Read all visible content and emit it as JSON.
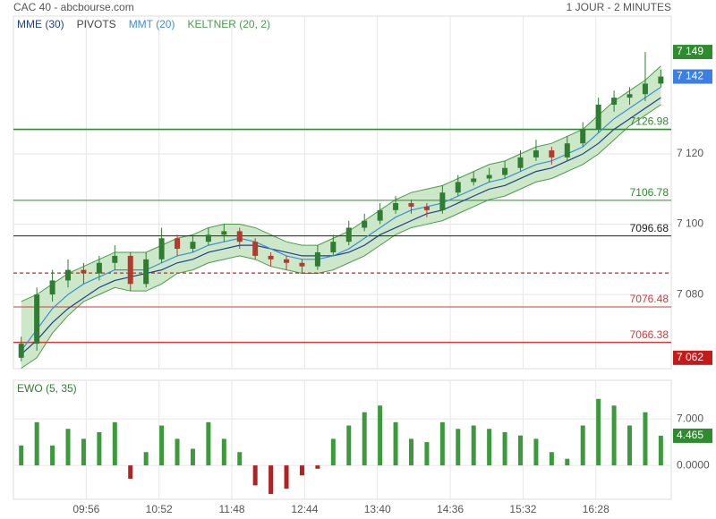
{
  "header": {
    "source": "CAC 40 - abcbourse.com",
    "period": "1 JOUR - 2 MINUTES"
  },
  "chart_data": [
    {
      "type": "candlestick",
      "xlim": [
        540,
        1046
      ],
      "ylim": [
        7058.9,
        7159.2
      ],
      "yticks": [
        {
          "value": 7080,
          "label": "7 080"
        },
        {
          "value": 7100,
          "label": "7 100"
        },
        {
          "value": 7120,
          "label": "7 120"
        }
      ],
      "grid": true,
      "x": [
        546,
        558,
        570,
        582,
        594,
        606,
        618,
        630,
        642,
        654,
        666,
        678,
        690,
        702,
        714,
        726,
        738,
        750,
        762,
        774,
        786,
        798,
        810,
        822,
        834,
        846,
        858,
        870,
        882,
        894,
        906,
        918,
        930,
        942,
        954,
        966,
        978,
        990,
        1002,
        1014,
        1026,
        1038
      ],
      "open": [
        7062,
        7066,
        7080,
        7084,
        7087,
        7086,
        7089,
        7091,
        7083,
        7090,
        7096,
        7093,
        7095,
        7097,
        7098,
        7095,
        7091,
        7090,
        7089,
        7088,
        7092,
        7095,
        7099,
        7101,
        7104,
        7106,
        7105,
        7104,
        7109,
        7112,
        7113,
        7114,
        7116,
        7119,
        7121,
        7119,
        7123,
        7127,
        7134,
        7136,
        7137,
        7140
      ],
      "high": [
        7068,
        7082,
        7087,
        7090,
        7089,
        7091,
        7094,
        7092,
        7092,
        7099,
        7097,
        7097,
        7099,
        7100,
        7099,
        7096,
        7092,
        7091,
        7090,
        7094,
        7097,
        7101,
        7103,
        7106,
        7108,
        7107,
        7106,
        7111,
        7114,
        7115,
        7116,
        7118,
        7121,
        7124,
        7122,
        7125,
        7129,
        7136,
        7138,
        7139,
        7149,
        7144
      ],
      "low": [
        7061,
        7064,
        7078,
        7082,
        7083,
        7084,
        7087,
        7081,
        7082,
        7089,
        7091,
        7092,
        7094,
        7095,
        7093,
        7090,
        7088,
        7087,
        7086,
        7087,
        7091,
        7094,
        7098,
        7100,
        7103,
        7103,
        7102,
        7103,
        7108,
        7111,
        7112,
        7113,
        7115,
        7118,
        7117,
        7118,
        7122,
        7126,
        7132,
        7134,
        7135,
        7139
      ],
      "close": [
        7066,
        7080,
        7084,
        7087,
        7086,
        7089,
        7091,
        7083,
        7090,
        7096,
        7093,
        7095,
        7097,
        7098,
        7095,
        7091,
        7090,
        7089,
        7088,
        7092,
        7095,
        7099,
        7101,
        7104,
        7106,
        7105,
        7104,
        7109,
        7112,
        7113,
        7114,
        7116,
        7119,
        7121,
        7119,
        7123,
        7127,
        7134,
        7136,
        7137,
        7140,
        7142
      ],
      "up_color": "#2e7d32",
      "down_color": "#b23b2e",
      "series": [
        {
          "name": "MME (30)",
          "color": "#1f3f8f",
          "values": [
            7063,
            7067,
            7072,
            7076,
            7079,
            7082,
            7084,
            7085,
            7086,
            7087,
            7089,
            7090,
            7092,
            7093,
            7094,
            7094,
            7093,
            7092,
            7091,
            7091,
            7091,
            7092,
            7094,
            7097,
            7099,
            7101,
            7103,
            7104,
            7106,
            7108,
            7110,
            7111,
            7113,
            7115,
            7116,
            7118,
            7120,
            7123,
            7127,
            7130,
            7133,
            7136
          ]
        },
        {
          "name": "MMT (20)",
          "color": "#3b8fd9",
          "values": [
            7064,
            7070,
            7076,
            7080,
            7083,
            7085,
            7087,
            7087,
            7087,
            7089,
            7091,
            7092,
            7094,
            7095,
            7096,
            7095,
            7093,
            7091,
            7090,
            7090,
            7091,
            7093,
            7096,
            7099,
            7102,
            7104,
            7105,
            7106,
            7108,
            7110,
            7112,
            7113,
            7115,
            7117,
            7118,
            7120,
            7122,
            7126,
            7130,
            7133,
            7136,
            7139
          ]
        }
      ],
      "keltner": {
        "name": "KELTNER (20, 2)",
        "color": "#4c9a4c",
        "fill": "#cde8c8",
        "upper": [
          7078,
          7080,
          7083,
          7086,
          7088,
          7090,
          7092,
          7092,
          7092,
          7094,
          7096,
          7097,
          7099,
          7100,
          7100,
          7099,
          7097,
          7095,
          7094,
          7094,
          7096,
          7098,
          7101,
          7104,
          7107,
          7109,
          7110,
          7111,
          7113,
          7115,
          7117,
          7118,
          7120,
          7122,
          7123,
          7125,
          7127,
          7131,
          7135,
          7138,
          7141,
          7145
        ],
        "lower": [
          7059,
          7062,
          7069,
          7074,
          7078,
          7080,
          7082,
          7081,
          7081,
          7083,
          7086,
          7087,
          7089,
          7090,
          7091,
          7090,
          7088,
          7087,
          7086,
          7086,
          7087,
          7089,
          7091,
          7094,
          7097,
          7099,
          7100,
          7101,
          7103,
          7105,
          7107,
          7108,
          7110,
          7112,
          7113,
          7115,
          7117,
          7120,
          7124,
          7128,
          7131,
          7134
        ]
      },
      "pivots": {
        "name": "PIVOTS",
        "color": "#444",
        "levels": [
          {
            "value": 7126.98,
            "label": "7126.98",
            "color": "#2e8b2e",
            "width": 1.6
          },
          {
            "value": 7106.78,
            "label": "7106.78",
            "color": "#2e8b2e",
            "width": 1
          },
          {
            "value": 7096.68,
            "label": "7096.68",
            "color": "#222",
            "width": 1
          },
          {
            "value": 7086.1,
            "color": "#c62828",
            "width": 1.2,
            "dashed": true
          },
          {
            "value": 7076.48,
            "label": "7076.48",
            "color": "#d23a3a",
            "width": 1
          },
          {
            "value": 7066.38,
            "label": "7066.38",
            "color": "#d23a3a",
            "width": 1.6
          }
        ]
      },
      "tags": [
        {
          "value": 7149,
          "label": "7 149",
          "color": "#2e8b2e"
        },
        {
          "value": 7142,
          "label": "7 142",
          "color": "#3d7fe0"
        },
        {
          "value": 7062,
          "label": "7 062",
          "color": "#c41a1a"
        }
      ]
    },
    {
      "type": "bar",
      "title": "EWO (5, 35)",
      "ylim": [
        -5.1,
        12.8
      ],
      "yticks": [
        {
          "value": 0,
          "label": "0.0000"
        },
        {
          "value": 7,
          "label": "7.000"
        }
      ],
      "grid": true,
      "pos_color": "#3c9a3c",
      "neg_color": "#b22222",
      "tag_color": "#2e8b2e",
      "values": [
        3,
        6.5,
        3,
        5.5,
        4,
        5,
        6.5,
        -2,
        2,
        6,
        4,
        2.5,
        6.5,
        4,
        2,
        -3,
        -4.3,
        -3.5,
        -1.5,
        -0.5,
        4,
        6,
        8,
        9,
        6.5,
        4,
        3.5,
        6.5,
        5.5,
        6,
        5.5,
        5,
        4.5,
        4,
        2,
        1,
        6,
        10,
        9,
        6,
        8,
        4.465
      ],
      "xticks": [
        {
          "value": 596,
          "label": "09:56"
        },
        {
          "value": 652,
          "label": "10:52"
        },
        {
          "value": 708,
          "label": "11:48"
        },
        {
          "value": 764,
          "label": "12:44"
        },
        {
          "value": 820,
          "label": "13:40"
        },
        {
          "value": 876,
          "label": "14:36"
        },
        {
          "value": 932,
          "label": "15:32"
        },
        {
          "value": 988,
          "label": "16:28"
        }
      ]
    }
  ]
}
